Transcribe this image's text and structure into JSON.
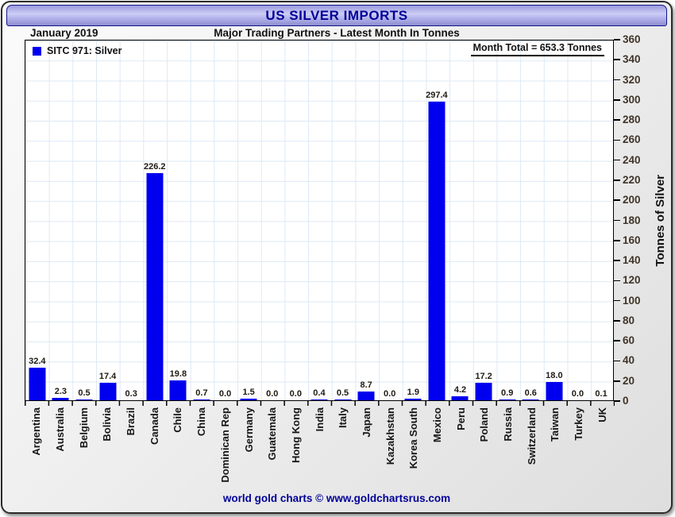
{
  "window": {
    "title": "US SILVER IMPORTS"
  },
  "header": {
    "date_label": "January 2019",
    "subtitle": "Major Trading Partners - Latest Month In Tonnes"
  },
  "legend": {
    "label": "SITC 971: Silver"
  },
  "annotations": {
    "month_total": "Month Total = 653.3 Tonnes"
  },
  "footer": {
    "credit": "world gold charts © www.goldchartsrus.com"
  },
  "colors": {
    "bar": "#0000EE",
    "grid": "#dce9f5",
    "navy_text": "#000099"
  },
  "chart_data": {
    "type": "bar",
    "title": "US SILVER IMPORTS",
    "subtitle": "Major Trading Partners - Latest Month In Tonnes",
    "period": "January 2019",
    "series_name": "SITC 971: Silver",
    "month_total_tonnes": 653.3,
    "ylabel": "Tonnes of Silver",
    "xlabel": "",
    "ylim": [
      0,
      360
    ],
    "ytick_step": 20,
    "grid": true,
    "legend_position": "top-left",
    "bar_color": "#0000EE",
    "categories": [
      "Argentina",
      "Australia",
      "Belgium",
      "Bolivia",
      "Brazil",
      "Canada",
      "Chile",
      "China",
      "Dominican Rep",
      "Germany",
      "Guatemala",
      "Hong Kong",
      "India",
      "Italy",
      "Japan",
      "Kazakhstan",
      "Korea South",
      "Mexico",
      "Peru",
      "Poland",
      "Russia",
      "Switzerland",
      "Taiwan",
      "Turkey",
      "UK"
    ],
    "values": [
      32.4,
      2.3,
      0.5,
      17.4,
      0.3,
      226.2,
      19.8,
      0.7,
      0.0,
      1.5,
      0.0,
      0.0,
      0.4,
      0.5,
      8.7,
      0.0,
      1.9,
      297.4,
      4.2,
      17.2,
      0.9,
      0.6,
      18.0,
      0.0,
      0.1
    ]
  }
}
